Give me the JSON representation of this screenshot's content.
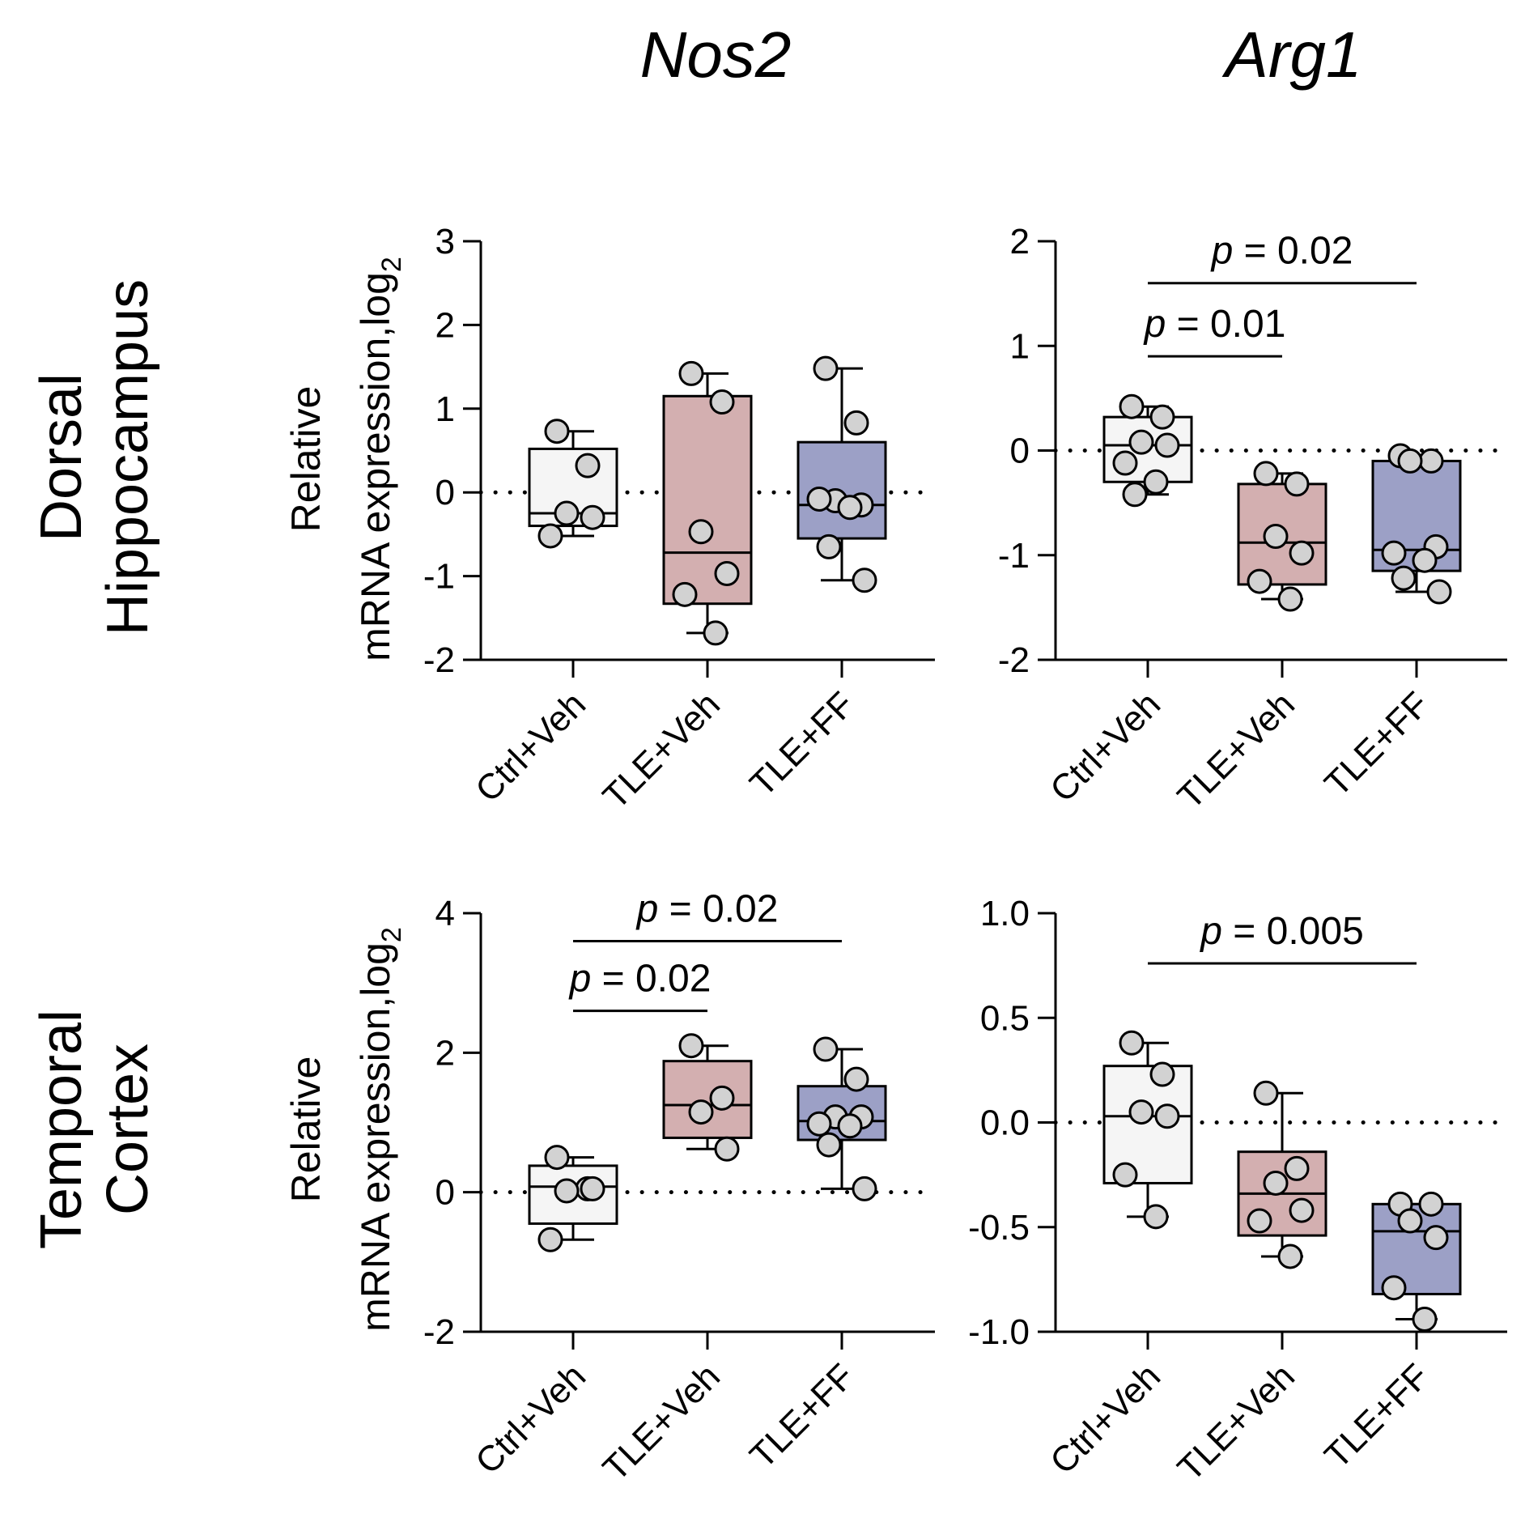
{
  "column_titles": [
    "Nos2",
    "Arg1"
  ],
  "row_labels": [
    [
      "Dorsal",
      "Hippocampus"
    ],
    [
      "Temporal",
      "Cortex"
    ]
  ],
  "y_axis_label": {
    "line1": "Relative",
    "line2": "mRNA expression,log",
    "subscript": "2"
  },
  "colors": {
    "Ctrl+Veh": "#f5f5f5",
    "TLE+Veh": "#d3afb0",
    "TLE+FF": "#9ca0c6",
    "point_fill": "#d2d2d2",
    "line": "#000000"
  },
  "chart_data": [
    {
      "type": "box",
      "title": "Nos2",
      "region": "Dorsal Hippocampus",
      "categories": [
        "Ctrl+Veh",
        "TLE+Veh",
        "TLE+FF"
      ],
      "ylim": [
        -2,
        3
      ],
      "yticks": [
        -2,
        -1,
        0,
        1,
        2,
        3
      ],
      "ytick_labels": [
        "-2",
        "-1",
        "0",
        "1",
        "2",
        "3"
      ],
      "reference_line": 0,
      "boxes": [
        {
          "name": "Ctrl+Veh",
          "min": -0.52,
          "q1": -0.4,
          "median": -0.25,
          "q3": 0.52,
          "max": 0.73,
          "points": [
            0.73,
            0.32,
            -0.25,
            -0.3,
            -0.52
          ]
        },
        {
          "name": "TLE+Veh",
          "min": -1.68,
          "q1": -1.33,
          "median": -0.72,
          "q3": 1.15,
          "max": 1.42,
          "points": [
            1.42,
            1.08,
            -0.47,
            -0.97,
            -1.22,
            -1.68
          ]
        },
        {
          "name": "TLE+FF",
          "min": -1.05,
          "q1": -0.55,
          "median": -0.15,
          "q3": 0.6,
          "max": 1.48,
          "points": [
            1.48,
            0.83,
            -0.1,
            -0.15,
            -0.08,
            -0.18,
            -0.65,
            -1.05
          ]
        }
      ],
      "annotations": []
    },
    {
      "type": "box",
      "title": "Arg1",
      "region": "Dorsal Hippocampus",
      "categories": [
        "Ctrl+Veh",
        "TLE+Veh",
        "TLE+FF"
      ],
      "ylim": [
        -2,
        2
      ],
      "yticks": [
        -2,
        -1,
        0,
        1,
        2
      ],
      "ytick_labels": [
        "-2",
        "-1",
        "0",
        "1",
        "2"
      ],
      "reference_line": 0,
      "boxes": [
        {
          "name": "Ctrl+Veh",
          "min": -0.42,
          "q1": -0.3,
          "median": 0.05,
          "q3": 0.32,
          "max": 0.42,
          "points": [
            0.42,
            0.32,
            0.08,
            0.05,
            -0.12,
            -0.3,
            -0.42
          ]
        },
        {
          "name": "TLE+Veh",
          "min": -1.42,
          "q1": -1.28,
          "median": -0.88,
          "q3": -0.32,
          "max": -0.22,
          "points": [
            -0.22,
            -0.32,
            -0.82,
            -0.98,
            -1.25,
            -1.42
          ]
        },
        {
          "name": "TLE+FF",
          "min": -1.35,
          "q1": -1.15,
          "median": -0.95,
          "q3": -0.1,
          "max": -0.05,
          "points": [
            -0.05,
            -0.1,
            -0.1,
            -0.92,
            -0.98,
            -1.05,
            -1.22,
            -1.35
          ]
        }
      ],
      "annotations": [
        {
          "label": "p",
          "value": " = 0.01",
          "from": 0,
          "to": 1,
          "y": 0.9
        },
        {
          "label": "p",
          "value": " = 0.02",
          "from": 0,
          "to": 2,
          "y": 1.6
        }
      ]
    },
    {
      "type": "box",
      "title": "Nos2",
      "region": "Temporal Cortex",
      "categories": [
        "Ctrl+Veh",
        "TLE+Veh",
        "TLE+FF"
      ],
      "ylim": [
        -2,
        4
      ],
      "yticks": [
        -2,
        0,
        2,
        4
      ],
      "ytick_labels": [
        "-2",
        "0",
        "2",
        "4"
      ],
      "reference_line": 0,
      "boxes": [
        {
          "name": "Ctrl+Veh",
          "min": -0.68,
          "q1": -0.45,
          "median": 0.08,
          "q3": 0.38,
          "max": 0.5,
          "points": [
            0.5,
            0.05,
            0.02,
            0.05,
            -0.68
          ]
        },
        {
          "name": "TLE+Veh",
          "min": 0.62,
          "q1": 0.78,
          "median": 1.25,
          "q3": 1.88,
          "max": 2.1,
          "points": [
            2.1,
            1.35,
            1.15,
            0.62
          ]
        },
        {
          "name": "TLE+FF",
          "min": 0.05,
          "q1": 0.75,
          "median": 1.02,
          "q3": 1.52,
          "max": 2.05,
          "points": [
            2.05,
            1.62,
            1.08,
            1.08,
            0.98,
            0.95,
            0.68,
            0.05
          ]
        }
      ],
      "annotations": [
        {
          "label": "p",
          "value": " = 0.02",
          "from": 0,
          "to": 1,
          "y": 2.6
        },
        {
          "label": "p",
          "value": " = 0.02",
          "from": 0,
          "to": 2,
          "y": 3.6
        }
      ]
    },
    {
      "type": "box",
      "title": "Arg1",
      "region": "Temporal Cortex",
      "categories": [
        "Ctrl+Veh",
        "TLE+Veh",
        "TLE+FF"
      ],
      "ylim": [
        -1.0,
        1.0
      ],
      "yticks": [
        -1.0,
        -0.5,
        0.0,
        0.5,
        1.0
      ],
      "ytick_labels": [
        "-1.0",
        "-0.5",
        "0.0",
        "0.5",
        "1.0"
      ],
      "reference_line": 0,
      "boxes": [
        {
          "name": "Ctrl+Veh",
          "min": -0.45,
          "q1": -0.29,
          "median": 0.03,
          "q3": 0.27,
          "max": 0.38,
          "points": [
            0.38,
            0.23,
            0.05,
            0.03,
            -0.25,
            -0.45
          ]
        },
        {
          "name": "TLE+Veh",
          "min": -0.64,
          "q1": -0.54,
          "median": -0.34,
          "q3": -0.14,
          "max": 0.14,
          "points": [
            0.14,
            -0.22,
            -0.29,
            -0.42,
            -0.47,
            -0.64
          ]
        },
        {
          "name": "TLE+FF",
          "min": -0.94,
          "q1": -0.82,
          "median": -0.52,
          "q3": -0.39,
          "max": -0.39,
          "points": [
            -0.39,
            -0.39,
            -0.47,
            -0.55,
            -0.79,
            -0.94
          ]
        }
      ],
      "annotations": [
        {
          "label": "p",
          "value": " = 0.005",
          "from": 0,
          "to": 2,
          "y": 0.76
        }
      ]
    }
  ]
}
